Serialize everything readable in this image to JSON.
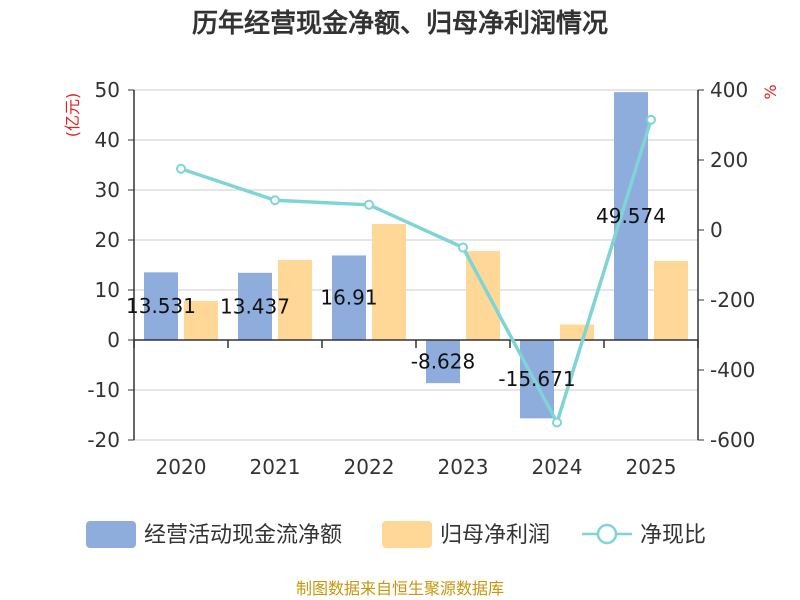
{
  "title": "历年经营现金净额、归母净利润情况",
  "left_unit": "(亿元)",
  "right_unit": "%",
  "source": "制图数据来自恒生聚源数据库",
  "colors": {
    "cash": "#8eacdc",
    "profit": "#ffd898",
    "ratio": "#7fd4d6",
    "axis": "#333333",
    "grid": "#cccccc"
  },
  "chart_data": {
    "type": "bar",
    "title": "历年经营现金净额、归母净利润情况",
    "categories": [
      "2020",
      "2021",
      "2022",
      "2023",
      "2024",
      "2025"
    ],
    "series": [
      {
        "name": "经营活动现金流净额",
        "type": "bar",
        "axis": "left",
        "values": [
          13.531,
          13.437,
          16.91,
          -8.628,
          -15.671,
          49.574
        ],
        "labels": [
          "13.531",
          "13.437",
          "16.91",
          "-8.628",
          "-15.671",
          "49.574"
        ]
      },
      {
        "name": "归母净利润",
        "type": "bar",
        "axis": "left",
        "values": [
          7.8,
          16.0,
          23.2,
          17.8,
          3.1,
          15.8
        ]
      },
      {
        "name": "净现比",
        "type": "line",
        "axis": "right",
        "values": [
          175,
          85,
          72,
          -50,
          -550,
          315
        ]
      }
    ],
    "left_axis": {
      "min": -20,
      "max": 50,
      "ticks": [
        "50",
        "40",
        "30",
        "20",
        "10",
        "0",
        "-10",
        "-20"
      ]
    },
    "right_axis": {
      "min": -600,
      "max": 400,
      "ticks": [
        "400",
        "200",
        "0",
        "-200",
        "-400",
        "-600"
      ]
    },
    "legend": [
      "经营活动现金流净额",
      "归母净利润",
      "净现比"
    ],
    "legend_position": "bottom"
  }
}
